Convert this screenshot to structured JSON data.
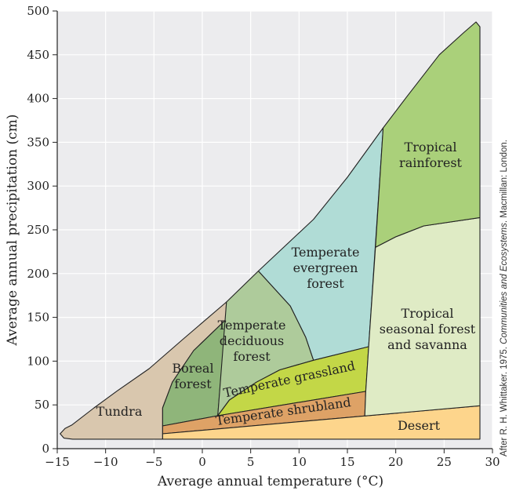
{
  "chart_data": {
    "type": "area",
    "xlabel": "Average annual temperature (°C)",
    "ylabel": "Average annual precipitation (cm)",
    "xlim": [
      -15,
      30
    ],
    "ylim": [
      0,
      500
    ],
    "xticks": [
      -15,
      -10,
      -5,
      0,
      5,
      10,
      15,
      20,
      25,
      30
    ],
    "yticks": [
      0,
      50,
      100,
      150,
      200,
      250,
      300,
      350,
      400,
      450,
      500
    ],
    "grid": true,
    "background_color": "#ececee",
    "credit": {
      "prefix": "After R. H. Whittaker. 1975. ",
      "title": "Communities and Ecosystems",
      "suffix": ". Macmillan: London."
    },
    "regions": [
      {
        "label": [
          "Tundra"
        ],
        "color": "#d9c7ae",
        "points": [
          [
            -13.4,
            10.8
          ],
          [
            -14.3,
            12
          ],
          [
            -14.7,
            17
          ],
          [
            -14.2,
            23
          ],
          [
            -13.5,
            27
          ],
          [
            -11.2,
            46.6
          ],
          [
            -8.8,
            66
          ],
          [
            -5.5,
            91.4
          ],
          [
            -2,
            125
          ],
          [
            2.5,
            167.6
          ],
          [
            2.4,
            147
          ],
          [
            -0.9,
            112
          ],
          [
            -3.1,
            76
          ],
          [
            -4.1,
            46.6
          ],
          [
            -4.1,
            10.8
          ]
        ]
      },
      {
        "label": [
          "Boreal",
          "forest"
        ],
        "color": "#8fb57a",
        "points": [
          [
            -4.1,
            26
          ],
          [
            -4.1,
            46.6
          ],
          [
            -3.1,
            76
          ],
          [
            -0.9,
            112
          ],
          [
            2.4,
            147
          ],
          [
            1.6,
            37.6
          ]
        ]
      },
      {
        "label": [
          "Temperate",
          "deciduous",
          "forest"
        ],
        "color": "#aecb9b",
        "points": [
          [
            1.6,
            37.6
          ],
          [
            2.5,
            167.6
          ],
          [
            5.8,
            203
          ],
          [
            9.1,
            163
          ],
          [
            10.7,
            127
          ],
          [
            11.5,
            101
          ],
          [
            8,
            90
          ],
          [
            5.6,
            76
          ],
          [
            2.8,
            55.6
          ]
        ]
      },
      {
        "label": [
          "Temperate",
          "evergreen",
          "forest"
        ],
        "color": "#b0dcd6",
        "points": [
          [
            5.8,
            203
          ],
          [
            11.5,
            262
          ],
          [
            15,
            310
          ],
          [
            18.7,
            366.5
          ],
          [
            17.2,
            116.5
          ],
          [
            11.5,
            101
          ],
          [
            10.7,
            127
          ],
          [
            9.1,
            163
          ]
        ]
      },
      {
        "label": [
          "Temperate grassland"
        ],
        "color": "#c3d747",
        "points": [
          [
            1.6,
            37.6
          ],
          [
            2.8,
            55.6
          ],
          [
            5.6,
            76
          ],
          [
            8,
            90
          ],
          [
            11.5,
            101
          ],
          [
            17.2,
            116.5
          ],
          [
            16.9,
            65.4
          ]
        ]
      },
      {
        "label": [
          "Temperate shrubland"
        ],
        "color": "#dea266",
        "points": [
          [
            -4.1,
            26
          ],
          [
            1.6,
            37.6
          ],
          [
            16.9,
            65.4
          ],
          [
            16.8,
            37.4
          ],
          [
            -4.1,
            17
          ]
        ]
      },
      {
        "label": [
          "Desert"
        ],
        "color": "#fdd58c",
        "points": [
          [
            -4.1,
            17
          ],
          [
            28.7,
            49
          ],
          [
            28.7,
            10.8
          ],
          [
            -4.1,
            10.8
          ]
        ]
      },
      {
        "label": [
          "Tropical",
          "seasonal forest",
          "and savanna"
        ],
        "color": "#dfebc5",
        "points": [
          [
            16.8,
            37.4
          ],
          [
            16.9,
            65.4
          ],
          [
            17.2,
            116.5
          ],
          [
            17.9,
            230
          ],
          [
            20,
            242
          ],
          [
            22.9,
            254.5
          ],
          [
            28.7,
            264
          ],
          [
            28.7,
            49
          ]
        ]
      },
      {
        "label": [
          "Tropical",
          "rainforest"
        ],
        "color": "#aad07a",
        "points": [
          [
            17.9,
            230
          ],
          [
            18.7,
            366.5
          ],
          [
            21,
            400
          ],
          [
            24.5,
            450
          ],
          [
            27,
            475
          ],
          [
            28.3,
            487.5
          ],
          [
            28.7,
            482
          ],
          [
            28.7,
            264
          ],
          [
            22.9,
            254.5
          ],
          [
            20,
            242
          ]
        ]
      }
    ]
  }
}
